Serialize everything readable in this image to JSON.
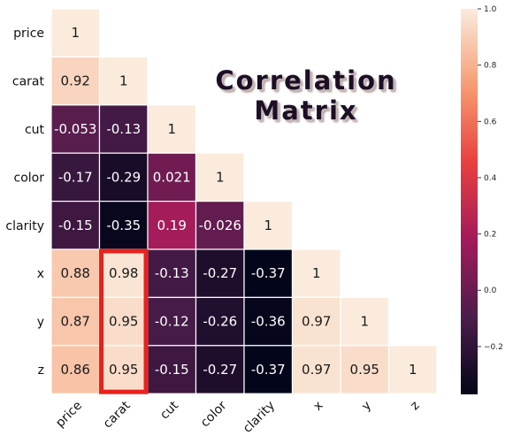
{
  "chart_data": {
    "type": "heatmap",
    "title": "Correlation Matrix",
    "variables": [
      "price",
      "carat",
      "cut",
      "color",
      "clarity",
      "x",
      "y",
      "z"
    ],
    "lower_triangle": [
      [
        1
      ],
      [
        0.92,
        1
      ],
      [
        -0.053,
        -0.13,
        1
      ],
      [
        -0.17,
        -0.29,
        0.021,
        1
      ],
      [
        -0.15,
        -0.35,
        0.19,
        -0.026,
        1
      ],
      [
        0.88,
        0.98,
        -0.13,
        -0.27,
        -0.37,
        1
      ],
      [
        0.87,
        0.95,
        -0.12,
        -0.26,
        -0.36,
        0.97,
        1
      ],
      [
        0.86,
        0.95,
        -0.15,
        -0.27,
        -0.37,
        0.97,
        0.95,
        1
      ]
    ],
    "colorbar": {
      "range": [
        -0.37,
        1.0
      ],
      "ticks": [
        -0.2,
        0.0,
        0.2,
        0.4,
        0.6,
        0.8,
        1.0
      ],
      "tick_labels": [
        "−0.2",
        "0.0",
        "0.2",
        "0.4",
        "0.6",
        "0.8",
        "1.0"
      ],
      "colormap": "rocket",
      "colormap_stops": [
        "#03051a",
        "#4c1d4b",
        "#a11a5b",
        "#e83f3f",
        "#f69c73",
        "#faebdd"
      ]
    },
    "highlight": {
      "column": "carat",
      "rows": [
        "x",
        "y",
        "z"
      ],
      "color": "#e8221d"
    },
    "grid_line_color": "#ffffff",
    "legend": "none"
  }
}
